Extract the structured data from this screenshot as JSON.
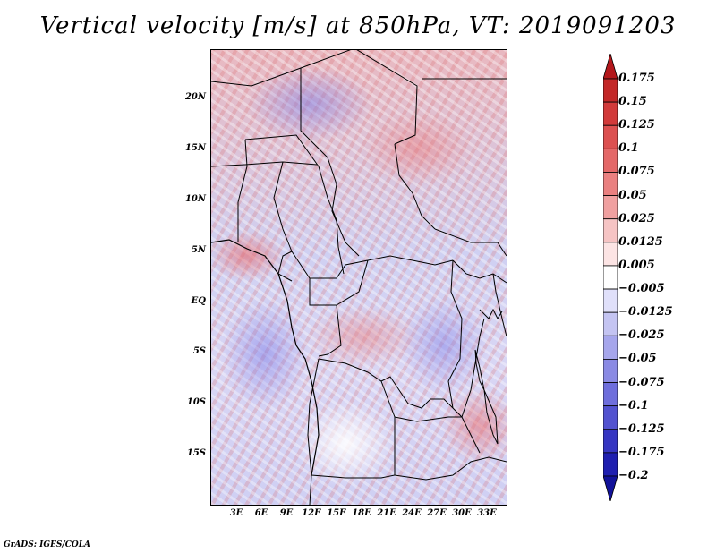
{
  "title": "Vertical velocity [m/s] at 850hPa, VT: 2019091203",
  "lat_labels": [
    "20N",
    "15N",
    "10N",
    "5N",
    "EQ",
    "5S",
    "10S",
    "15S"
  ],
  "lon_labels": [
    "3E",
    "6E",
    "9E",
    "12E",
    "15E",
    "18E",
    "21E",
    "24E",
    "27E",
    "30E",
    "33E"
  ],
  "colorbar": {
    "labels": [
      "0.175",
      "0.15",
      "0.125",
      "0.1",
      "0.075",
      "0.05",
      "0.025",
      "0.0125",
      "0.005",
      "−0.005",
      "−0.0125",
      "−0.025",
      "−0.05",
      "−0.075",
      "−0.1",
      "−0.125",
      "−0.175",
      "−0.2"
    ],
    "colors": [
      "#b3171b",
      "#c32828",
      "#d23a3a",
      "#dc5050",
      "#e46868",
      "#ea8080",
      "#f0a0a0",
      "#f6c4c4",
      "#fce4e4",
      "#ffffff",
      "#e0e0fa",
      "#c4c4f2",
      "#a6a6ec",
      "#8a8ae4",
      "#6e6edc",
      "#5252d0",
      "#3636c2",
      "#1f1fb0",
      "#12129a"
    ]
  },
  "footer": "GrADS: IGES/COLA"
}
